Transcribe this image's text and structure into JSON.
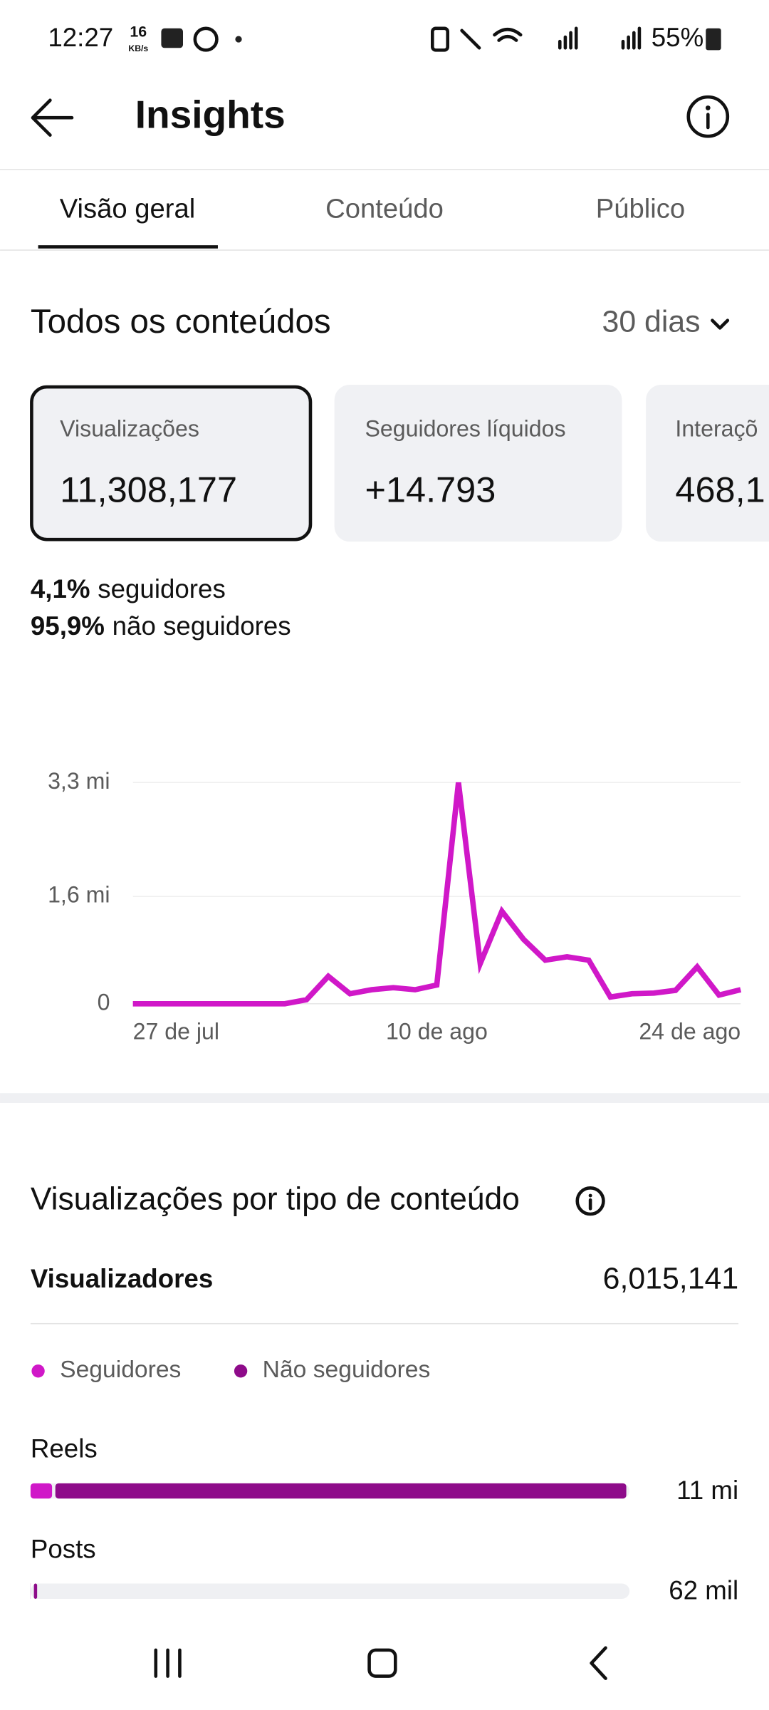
{
  "status_bar": {
    "time": "12:27",
    "speed": "16",
    "speed_unit": "KB/s",
    "battery": "55%"
  },
  "header": {
    "title": "Insights"
  },
  "tabs": [
    "Visão geral",
    "Conteúdo",
    "Público"
  ],
  "section": {
    "title": "Todos os conteúdos",
    "period": "30 dias"
  },
  "cards": [
    {
      "label": "Visualizações",
      "value": "11,308,177"
    },
    {
      "label": "Seguidores líquidos",
      "value": "+14.793"
    },
    {
      "label": "Interaçõ",
      "value": "468,1"
    }
  ],
  "audience_split": [
    {
      "percent": "4,1%",
      "label": "seguidores"
    },
    {
      "percent": "95,9%",
      "label": "não seguidores"
    }
  ],
  "breakdown": {
    "title": "Visualizações por tipo de conteúdo",
    "viewers_label": "Visualizadores",
    "viewers_value": "6,015,141"
  },
  "chart_data": [
    {
      "type": "line",
      "color": "#d018c8",
      "categories": [
        "27 de jul",
        null,
        null,
        null,
        null,
        null,
        null,
        null,
        null,
        null,
        null,
        null,
        null,
        null,
        "10 de ago",
        null,
        null,
        null,
        null,
        null,
        null,
        null,
        null,
        null,
        null,
        null,
        null,
        null,
        "24 de ago"
      ],
      "values": [
        0,
        0,
        0,
        0,
        0,
        0,
        0,
        0,
        0.06,
        0.41,
        0.15,
        0.21,
        0.24,
        0.21,
        0.28,
        3.3,
        0.6,
        1.38,
        0.96,
        0.65,
        0.7,
        0.65,
        0.1,
        0.15,
        0.16,
        0.2,
        0.55,
        0.13,
        0.21
      ],
      "ylim": [
        0,
        3.3
      ],
      "yticks": [
        0,
        {
          "value": 1.6,
          "label": "1,6 mi"
        },
        {
          "value": 3.3,
          "label": "3,3 mi"
        }
      ],
      "grid": true
    },
    {
      "type": "bar",
      "orientation": "horizontal",
      "stacked": true,
      "categories": [
        "Reels",
        "Posts"
      ],
      "series": [
        {
          "name": "Seguidores",
          "color": "#d018c8",
          "values": [
            0.4,
            0.002
          ]
        },
        {
          "name": "Não seguidores",
          "color": "#8e0b8a",
          "values": [
            10.6,
            0.06
          ]
        }
      ],
      "values": [
        11,
        0.062
      ],
      "value_labels": [
        "11 mi",
        "62 mil"
      ],
      "xlim": [
        0,
        11
      ]
    }
  ]
}
